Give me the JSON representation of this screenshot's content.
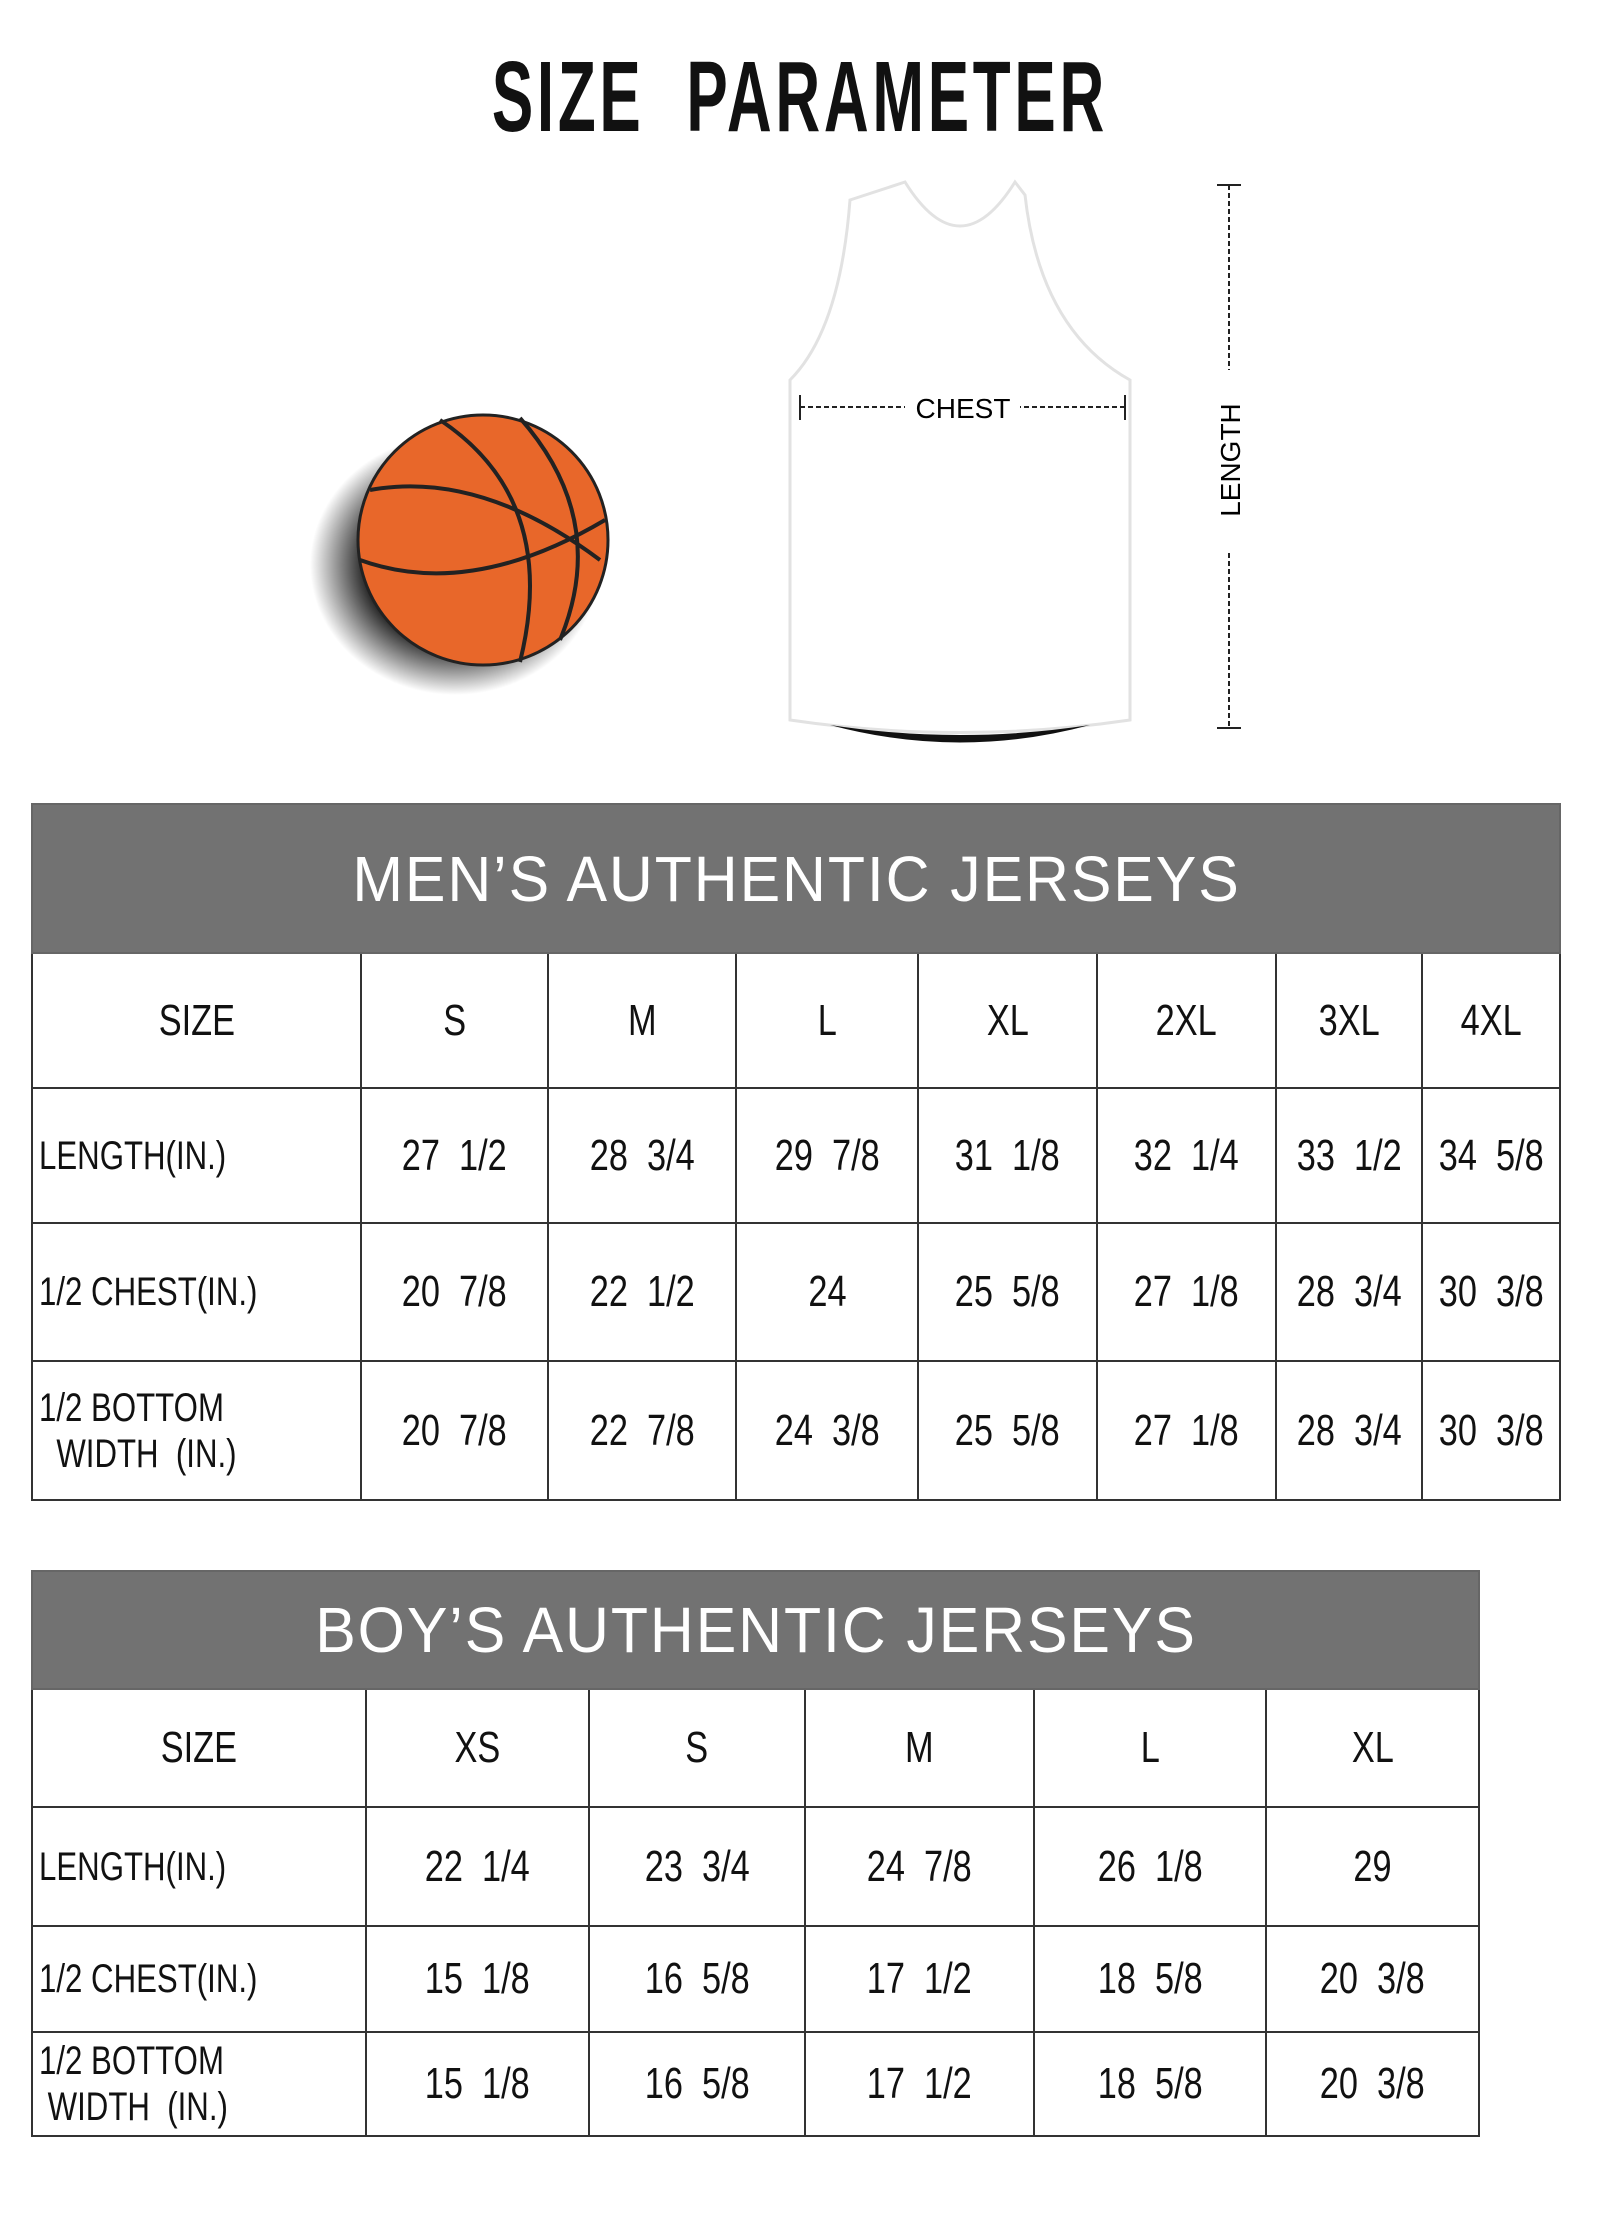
{
  "title": "SIZE  PARAMETER",
  "diagram": {
    "chest_label": "CHEST",
    "length_label": "LENGTH",
    "ball_color": "#e8672a"
  },
  "colors": {
    "header_bg": "#727272"
  },
  "mens": {
    "title": "MEN’S AUTHENTIC JERSEYS",
    "columns": [
      "SIZE",
      "S",
      "M",
      "L",
      "XL",
      "2XL",
      "3XL",
      "4XL"
    ],
    "rows": [
      {
        "label": "LENGTH(IN.)",
        "values": [
          "27  1/2",
          "28  3/4",
          "29  7/8",
          "31  1/8",
          "32  1/4",
          "33  1/2",
          "34  5/8"
        ]
      },
      {
        "label": "1/2 CHEST(IN.)",
        "values": [
          "20  7/8",
          "22  1/2",
          "24",
          "25  5/8",
          "27  1/8",
          "28  3/4",
          "30  3/8"
        ]
      },
      {
        "label": "1/2 BOTTOM\n  WIDTH  (IN.)",
        "values": [
          "20  7/8",
          "22  7/8",
          "24  3/8",
          "25  5/8",
          "27  1/8",
          "28  3/4",
          "30  3/8"
        ]
      }
    ]
  },
  "boys": {
    "title": "BOY’S AUTHENTIC JERSEYS",
    "columns": [
      "SIZE",
      "XS",
      "S",
      "M",
      "L",
      "XL"
    ],
    "rows": [
      {
        "label": "LENGTH(IN.)",
        "values": [
          "22  1/4",
          "23  3/4",
          "24  7/8",
          "26  1/8",
          "29"
        ]
      },
      {
        "label": "1/2 CHEST(IN.)",
        "values": [
          "15  1/8",
          "16  5/8",
          "17  1/2",
          "18  5/8",
          "20  3/8"
        ]
      },
      {
        "label": "1/2 BOTTOM\n WIDTH  (IN.)",
        "values": [
          "15  1/8",
          "16  5/8",
          "17  1/2",
          "18  5/8",
          "20  3/8"
        ]
      }
    ]
  }
}
